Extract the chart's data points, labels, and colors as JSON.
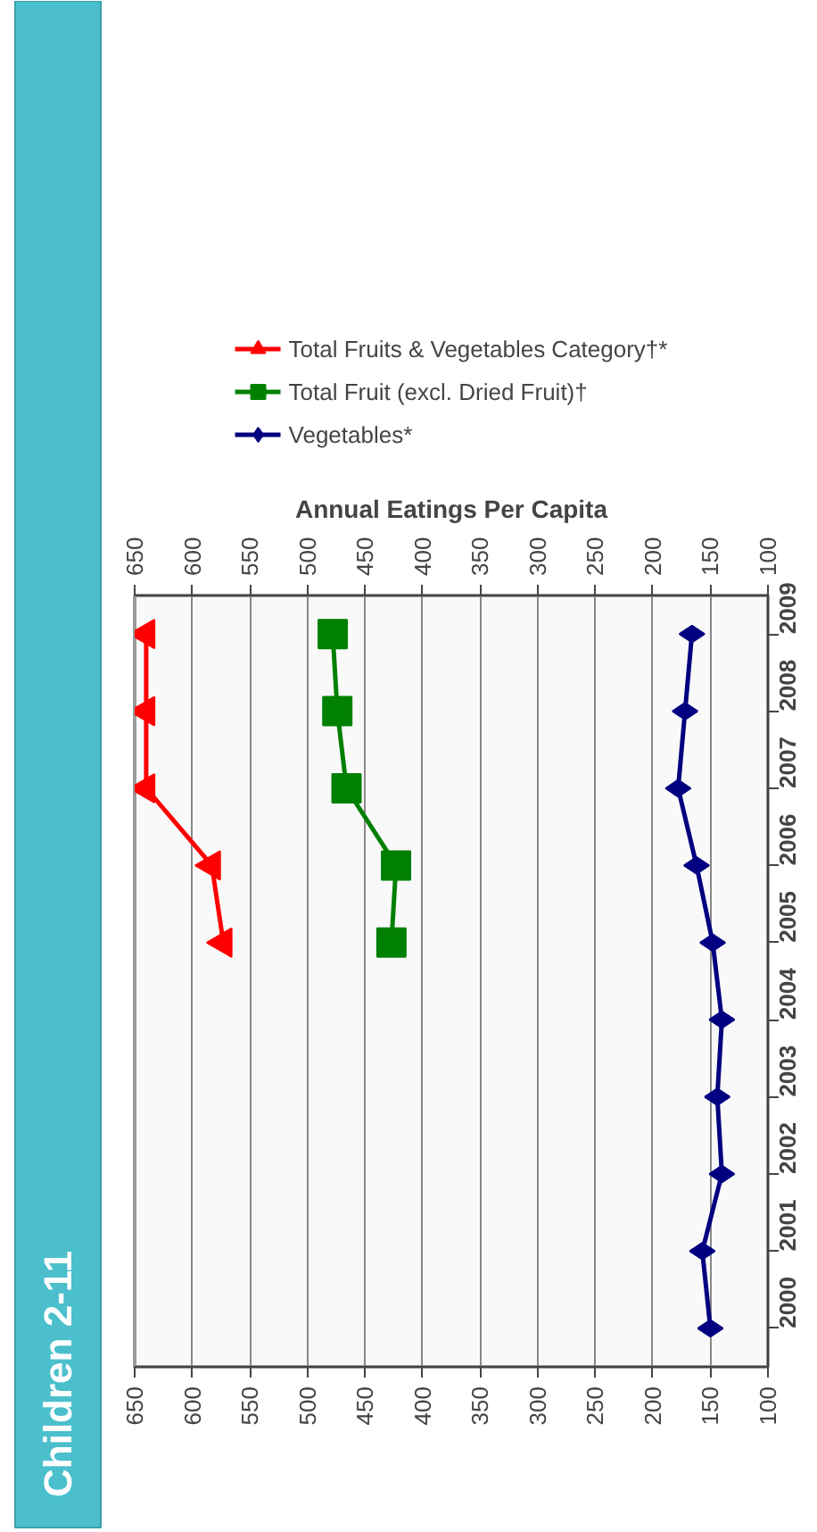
{
  "chart_data": {
    "type": "line",
    "orientation": "horizontal",
    "title": "Children 2-11",
    "xlabel": "Annual Eatings Per Capita",
    "categories": [
      "2009",
      "2008",
      "2007",
      "2006",
      "2005",
      "2004",
      "2003",
      "2002",
      "2001",
      "2000"
    ],
    "series": [
      {
        "name": "Total Fruits & Vegetables Category†*",
        "color": "#ff0000",
        "marker": "triangle",
        "values": [
          640,
          640,
          640,
          583,
          573,
          null,
          null,
          null,
          null,
          null
        ]
      },
      {
        "name": "Total Fruit (excl. Dried Fruit)†",
        "color": "#008000",
        "marker": "square",
        "values": [
          478,
          474,
          466,
          423,
          427,
          null,
          null,
          null,
          null,
          null
        ]
      },
      {
        "name": "Vegetables*",
        "color": "#000080",
        "marker": "diamond",
        "values": [
          166,
          172,
          178,
          162,
          148,
          140,
          144,
          140,
          157,
          150
        ]
      }
    ],
    "xlim": [
      650,
      100
    ],
    "xticks": [
      650,
      600,
      550,
      500,
      450,
      400,
      350,
      300,
      250,
      200,
      150,
      100
    ],
    "x2lim": [
      650,
      100
    ],
    "x2ticks": [
      650,
      600,
      550,
      500,
      450,
      400,
      350,
      300,
      250,
      200,
      150,
      100
    ],
    "grid": "x",
    "legend": "top",
    "line_style": "solid"
  }
}
